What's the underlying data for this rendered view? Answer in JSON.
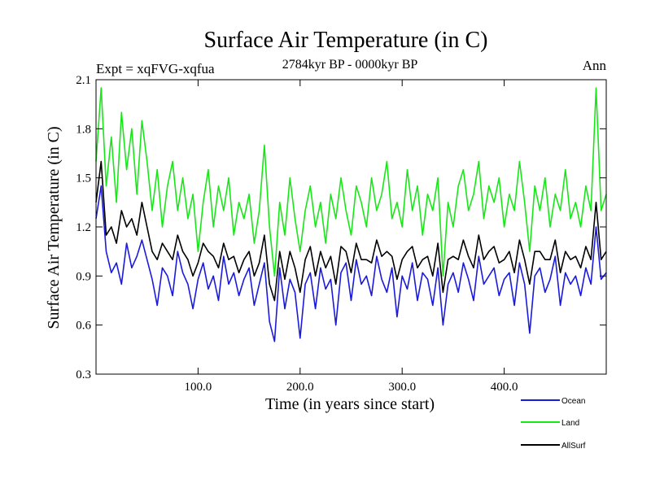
{
  "chart_data": {
    "type": "line",
    "title": "Surface Air Temperature (in C)",
    "subtitle": "2784kyr BP - 0000kyr BP",
    "experiment_label": "Expt = xqFVG-xqfua",
    "season_label": "Ann",
    "xlabel": "Time (in years since start)",
    "ylabel": "Surface Air Temperature (in C)",
    "xlim": [
      0,
      500
    ],
    "ylim": [
      0.3,
      2.1
    ],
    "xticks": [
      100,
      200,
      300,
      400
    ],
    "xtick_labels": [
      "100.0",
      "200.0",
      "300.0",
      "400.0"
    ],
    "yticks": [
      0.3,
      0.6,
      0.9,
      1.2,
      1.5,
      1.8,
      2.1
    ],
    "ytick_labels": [
      "0.3",
      "0.6",
      "0.9",
      "1.2",
      "1.5",
      "1.8",
      "2.1"
    ],
    "grid": false,
    "legend_position": "bottom-right, outside plot",
    "series": [
      {
        "name": "Ocean",
        "color": "#1a1adb",
        "x": [
          0,
          5,
          10,
          15,
          20,
          25,
          30,
          35,
          40,
          45,
          50,
          55,
          60,
          65,
          70,
          75,
          80,
          85,
          90,
          95,
          100,
          105,
          110,
          115,
          120,
          125,
          130,
          135,
          140,
          145,
          150,
          155,
          160,
          165,
          170,
          175,
          180,
          185,
          190,
          195,
          200,
          205,
          210,
          215,
          220,
          225,
          230,
          235,
          240,
          245,
          250,
          255,
          260,
          265,
          270,
          275,
          280,
          285,
          290,
          295,
          300,
          305,
          310,
          315,
          320,
          325,
          330,
          335,
          340,
          345,
          350,
          355,
          360,
          365,
          370,
          375,
          380,
          385,
          390,
          395,
          400,
          405,
          410,
          415,
          420,
          425,
          430,
          435,
          440,
          445,
          450,
          455,
          460,
          465,
          470,
          475,
          480,
          485,
          490,
          495,
          500
        ],
        "values": [
          1.25,
          1.45,
          1.05,
          0.92,
          0.98,
          0.85,
          1.1,
          0.95,
          1.02,
          1.12,
          1.0,
          0.88,
          0.72,
          0.95,
          0.9,
          0.78,
          1.05,
          0.92,
          0.85,
          0.7,
          0.88,
          0.98,
          0.82,
          0.9,
          0.75,
          1.02,
          0.85,
          0.92,
          0.78,
          0.88,
          0.95,
          0.72,
          0.85,
          0.98,
          0.62,
          0.5,
          0.95,
          0.7,
          0.88,
          0.8,
          0.52,
          0.85,
          0.92,
          0.7,
          0.95,
          0.82,
          0.88,
          0.6,
          0.92,
          0.98,
          0.75,
          1.0,
          0.85,
          0.9,
          0.78,
          1.02,
          0.88,
          0.8,
          0.95,
          0.65,
          0.9,
          0.82,
          0.98,
          0.75,
          0.92,
          0.88,
          0.72,
          0.95,
          0.6,
          0.85,
          0.92,
          0.8,
          0.98,
          0.88,
          0.75,
          1.02,
          0.85,
          0.9,
          0.95,
          0.78,
          0.88,
          0.92,
          0.72,
          0.98,
          0.85,
          0.55,
          0.9,
          0.95,
          0.8,
          0.88,
          1.02,
          0.72,
          0.92,
          0.85,
          0.9,
          0.78,
          0.95,
          0.85,
          1.2,
          0.88,
          0.92
        ]
      },
      {
        "name": "Land",
        "color": "#19e619",
        "x": [
          0,
          5,
          10,
          15,
          20,
          25,
          30,
          35,
          40,
          45,
          50,
          55,
          60,
          65,
          70,
          75,
          80,
          85,
          90,
          95,
          100,
          105,
          110,
          115,
          120,
          125,
          130,
          135,
          140,
          145,
          150,
          155,
          160,
          165,
          170,
          175,
          180,
          185,
          190,
          195,
          200,
          205,
          210,
          215,
          220,
          225,
          230,
          235,
          240,
          245,
          250,
          255,
          260,
          265,
          270,
          275,
          280,
          285,
          290,
          295,
          300,
          305,
          310,
          315,
          320,
          325,
          330,
          335,
          340,
          345,
          350,
          355,
          360,
          365,
          370,
          375,
          380,
          385,
          390,
          395,
          400,
          405,
          410,
          415,
          420,
          425,
          430,
          435,
          440,
          445,
          450,
          455,
          460,
          465,
          470,
          475,
          480,
          485,
          490,
          495,
          500
        ],
        "values": [
          1.6,
          2.05,
          1.45,
          1.75,
          1.35,
          1.9,
          1.55,
          1.8,
          1.4,
          1.85,
          1.6,
          1.3,
          1.55,
          1.2,
          1.45,
          1.6,
          1.3,
          1.5,
          1.25,
          1.4,
          1.05,
          1.35,
          1.55,
          1.2,
          1.45,
          1.3,
          1.5,
          1.15,
          1.35,
          1.25,
          1.4,
          1.1,
          1.3,
          1.7,
          1.2,
          0.9,
          1.35,
          1.15,
          1.5,
          1.25,
          1.05,
          1.3,
          1.45,
          1.2,
          1.35,
          1.1,
          1.4,
          1.25,
          1.5,
          1.3,
          1.15,
          1.45,
          1.35,
          1.2,
          1.5,
          1.3,
          1.4,
          1.6,
          1.25,
          1.35,
          1.2,
          1.55,
          1.3,
          1.45,
          1.15,
          1.4,
          1.3,
          1.5,
          0.9,
          1.35,
          1.2,
          1.45,
          1.55,
          1.3,
          1.4,
          1.6,
          1.25,
          1.45,
          1.35,
          1.5,
          1.2,
          1.4,
          1.3,
          1.6,
          1.35,
          1.05,
          1.45,
          1.3,
          1.5,
          1.2,
          1.4,
          1.3,
          1.55,
          1.25,
          1.35,
          1.2,
          1.45,
          1.3,
          2.05,
          1.3,
          1.4
        ]
      },
      {
        "name": "AllSurf",
        "color": "#000000",
        "x": [
          0,
          5,
          10,
          15,
          20,
          25,
          30,
          35,
          40,
          45,
          50,
          55,
          60,
          65,
          70,
          75,
          80,
          85,
          90,
          95,
          100,
          105,
          110,
          115,
          120,
          125,
          130,
          135,
          140,
          145,
          150,
          155,
          160,
          165,
          170,
          175,
          180,
          185,
          190,
          195,
          200,
          205,
          210,
          215,
          220,
          225,
          230,
          235,
          240,
          245,
          250,
          255,
          260,
          265,
          270,
          275,
          280,
          285,
          290,
          295,
          300,
          305,
          310,
          315,
          320,
          325,
          330,
          335,
          340,
          345,
          350,
          355,
          360,
          365,
          370,
          375,
          380,
          385,
          390,
          395,
          400,
          405,
          410,
          415,
          420,
          425,
          430,
          435,
          440,
          445,
          450,
          455,
          460,
          465,
          470,
          475,
          480,
          485,
          490,
          495,
          500
        ],
        "values": [
          1.35,
          1.6,
          1.15,
          1.2,
          1.1,
          1.3,
          1.2,
          1.25,
          1.15,
          1.35,
          1.2,
          1.05,
          1.0,
          1.1,
          1.05,
          1.0,
          1.15,
          1.05,
          1.0,
          0.9,
          0.98,
          1.1,
          1.05,
          1.02,
          0.95,
          1.1,
          1.0,
          1.02,
          0.92,
          1.0,
          1.05,
          0.9,
          0.98,
          1.15,
          0.85,
          0.75,
          1.05,
          0.88,
          1.05,
          0.95,
          0.8,
          1.0,
          1.08,
          0.9,
          1.05,
          0.95,
          1.02,
          0.85,
          1.08,
          1.05,
          0.92,
          1.1,
          1.0,
          1.0,
          0.98,
          1.12,
          1.02,
          1.05,
          1.02,
          0.88,
          1.0,
          1.05,
          1.08,
          0.95,
          1.0,
          1.02,
          0.9,
          1.1,
          0.8,
          1.0,
          1.02,
          1.0,
          1.12,
          1.02,
          0.95,
          1.15,
          1.0,
          1.05,
          1.08,
          0.98,
          1.0,
          1.05,
          0.92,
          1.12,
          1.0,
          0.85,
          1.05,
          1.05,
          1.0,
          1.0,
          1.12,
          0.92,
          1.05,
          1.0,
          1.02,
          0.95,
          1.08,
          1.0,
          1.35,
          1.0,
          1.05
        ]
      }
    ]
  }
}
